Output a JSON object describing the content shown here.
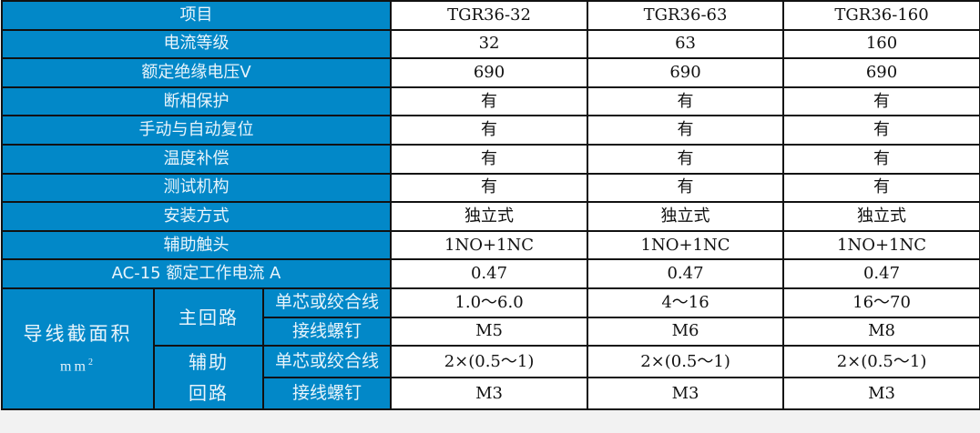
{
  "colors": {
    "header_bg": "#0288c8",
    "border": "#111111"
  },
  "header": {
    "label": "项目",
    "models": [
      "TGR36-32",
      "TGR36-63",
      "TGR36-160"
    ]
  },
  "rows": [
    {
      "label": "电流等级",
      "values": [
        "32",
        "63",
        "160"
      ]
    },
    {
      "label": "额定绝缘电压V",
      "values": [
        "690",
        "690",
        "690"
      ]
    },
    {
      "label": "断相保护",
      "values": [
        "有",
        "有",
        "有"
      ]
    },
    {
      "label": "手动与自动复位",
      "values": [
        "有",
        "有",
        "有"
      ]
    },
    {
      "label": "温度补偿",
      "values": [
        "有",
        "有",
        "有"
      ]
    },
    {
      "label": "测试机构",
      "values": [
        "有",
        "有",
        "有"
      ]
    },
    {
      "label": "安装方式",
      "values": [
        "独立式",
        "独立式",
        "独立式"
      ]
    },
    {
      "label": "辅助触头",
      "values": [
        "1NO+1NC",
        "1NO+1NC",
        "1NO+1NC"
      ]
    },
    {
      "label": "AC-15 额定工作电流 A",
      "values": [
        "0.47",
        "0.47",
        "0.47"
      ]
    }
  ],
  "wire": {
    "label": "导线截面积",
    "unit": "mm",
    "unit_sup": "2",
    "main": {
      "label": "主回路",
      "rows": [
        {
          "label": "单芯或绞合线",
          "values": [
            "1.0～6.0",
            "4～16",
            "16～70"
          ]
        },
        {
          "label": "接线螺钉",
          "values": [
            "M5",
            "M6",
            "M8"
          ]
        }
      ]
    },
    "aux": {
      "label1": "辅助",
      "label2": "回路",
      "rows": [
        {
          "label": "单芯或绞合线",
          "values": [
            "2×(0.5～1)",
            "2×(0.5～1)",
            "2×(0.5～1)"
          ]
        },
        {
          "label": "接线螺钉",
          "values": [
            "M3",
            "M3",
            "M3"
          ]
        }
      ]
    }
  }
}
